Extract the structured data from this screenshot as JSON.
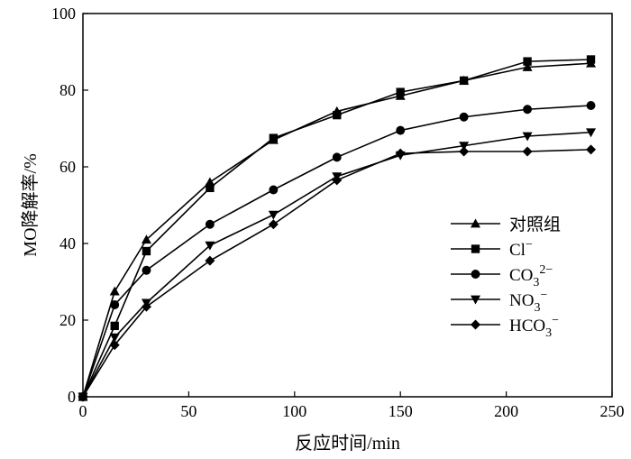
{
  "chart_data": {
    "type": "line",
    "xlabel": "反应时间/min",
    "ylabel": "MO降解率/%",
    "xlim": [
      0,
      250
    ],
    "ylim": [
      0,
      100
    ],
    "xticks": [
      0,
      50,
      100,
      150,
      200,
      250
    ],
    "yticks": [
      0,
      20,
      40,
      60,
      80,
      100
    ],
    "grid": false,
    "legend_position": "center-right",
    "x": [
      0,
      15,
      30,
      60,
      90,
      120,
      150,
      180,
      210,
      240
    ],
    "series": [
      {
        "name": "对照组",
        "legend": {
          "text": "对照组"
        },
        "marker": "triangle-up",
        "values": [
          0,
          27.5,
          41,
          56,
          67,
          74.5,
          78.5,
          82.5,
          86,
          87
        ]
      },
      {
        "name": "Cl−",
        "legend": {
          "text": "Cl",
          "sup": "−"
        },
        "marker": "square",
        "values": [
          0,
          18.5,
          38,
          54.5,
          67.5,
          73.5,
          79.5,
          82.5,
          87.5,
          88
        ]
      },
      {
        "name": "CO32−",
        "legend": {
          "text": "CO",
          "sub": "3",
          "sup": "2−"
        },
        "marker": "circle",
        "values": [
          0,
          24,
          33,
          45,
          54,
          62.5,
          69.5,
          73,
          75,
          76
        ]
      },
      {
        "name": "NO3−",
        "legend": {
          "text": "NO",
          "sub": "3",
          "sup": "−"
        },
        "marker": "triangle-down",
        "values": [
          0,
          15.5,
          24.5,
          39.5,
          47.5,
          57.5,
          63,
          65.5,
          68,
          69
        ]
      },
      {
        "name": "HCO3−",
        "legend": {
          "text": "HCO",
          "sub": "3",
          "sup": "−"
        },
        "marker": "diamond",
        "values": [
          0,
          13.5,
          23.5,
          35.5,
          45,
          56.5,
          63.5,
          64,
          64,
          64.5
        ]
      }
    ]
  }
}
